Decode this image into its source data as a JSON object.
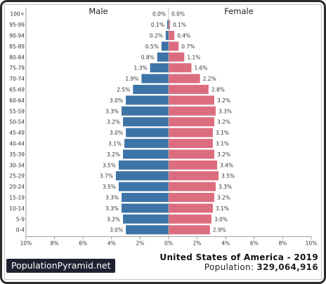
{
  "chart_data": {
    "type": "bar",
    "title": "United States of America - 2019",
    "population_label": "Population:",
    "population": "329,064,916",
    "source": "PopulationPyramid.net",
    "male_label": "Male",
    "female_label": "Female",
    "unit": "%",
    "xlim": [
      -10,
      10
    ],
    "x_ticks": [
      "10%",
      "8%",
      "6%",
      "4%",
      "2%",
      "0%",
      "2%",
      "4%",
      "6%",
      "8%",
      "10%"
    ],
    "categories": [
      "100+",
      "95-99",
      "90-94",
      "85-89",
      "80-84",
      "75-79",
      "70-74",
      "65-69",
      "60-64",
      "55-59",
      "50-54",
      "45-49",
      "40-44",
      "35-39",
      "30-34",
      "25-29",
      "20-24",
      "15-19",
      "10-14",
      "5-9",
      "0-4"
    ],
    "series": [
      {
        "name": "Male",
        "color": "#3c74a8",
        "values": [
          0.0,
          0.1,
          0.2,
          0.5,
          0.8,
          1.3,
          1.9,
          2.5,
          3.0,
          3.3,
          3.2,
          3.0,
          3.1,
          3.2,
          3.5,
          3.7,
          3.5,
          3.3,
          3.3,
          3.2,
          3.0
        ],
        "labels": [
          "0.0%",
          "0.1%",
          "0.2%",
          "0.5%",
          "0.8%",
          "1.3%",
          "1.9%",
          "2.5%",
          "3.0%",
          "3.3%",
          "3.2%",
          "3.0%",
          "3.1%",
          "3.2%",
          "3.5%",
          "3.7%",
          "3.5%",
          "3.3%",
          "3.3%",
          "3.2%",
          "3.0%"
        ]
      },
      {
        "name": "Female",
        "color": "#dc6d7e",
        "values": [
          0.0,
          0.1,
          0.4,
          0.7,
          1.1,
          1.6,
          2.2,
          2.8,
          3.2,
          3.3,
          3.2,
          3.1,
          3.1,
          3.2,
          3.4,
          3.5,
          3.3,
          3.2,
          3.1,
          3.0,
          2.9
        ],
        "labels": [
          "0.0%",
          "0.1%",
          "0.4%",
          "0.7%",
          "1.1%",
          "1.6%",
          "2.2%",
          "2.8%",
          "3.2%",
          "3.3%",
          "3.2%",
          "3.1%",
          "3.1%",
          "3.2%",
          "3.4%",
          "3.5%",
          "3.3%",
          "3.2%",
          "3.1%",
          "3.0%",
          "2.9%"
        ]
      }
    ],
    "axis_color": "#9a9a9a",
    "text_color": "#333333"
  }
}
